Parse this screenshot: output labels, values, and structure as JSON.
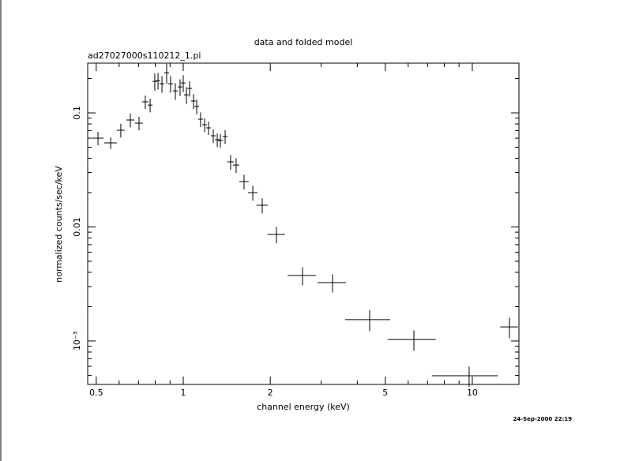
{
  "chart_data": {
    "type": "errorbar",
    "title": "data and folded model",
    "subtitle": "ad27027000s110212_1.pi",
    "xlabel": "channel energy (keV)",
    "ylabel": "normalized counts/sec/keV",
    "timestamp": "24-Sep-2000 22:19",
    "color": "#000000",
    "xscale": "log",
    "yscale": "log",
    "xlim": [
      0.467,
      14.5
    ],
    "ylim": [
      0.000416,
      0.273
    ],
    "xticks": [
      0.5,
      1,
      2,
      5,
      10
    ],
    "yticks": [
      {
        "value": 0.001,
        "label": "10⁻³"
      },
      0.01,
      0.1
    ],
    "xminorticks": [
      0.6,
      0.7,
      0.8,
      0.9,
      3,
      4,
      6,
      7,
      8,
      9
    ],
    "yminorticks": [
      0.0005,
      0.0006,
      0.0007,
      0.0008,
      0.0009,
      0.002,
      0.003,
      0.004,
      0.005,
      0.006,
      0.007,
      0.008,
      0.009,
      0.02,
      0.03,
      0.04,
      0.05,
      0.06,
      0.07,
      0.08,
      0.09,
      0.2
    ],
    "x": [
      0.507,
      0.561,
      0.608,
      0.656,
      0.703,
      0.739,
      0.768,
      0.797,
      0.818,
      0.844,
      0.876,
      0.904,
      0.939,
      0.975,
      1.0,
      1.025,
      1.052,
      1.085,
      1.113,
      1.148,
      1.185,
      1.223,
      1.27,
      1.311,
      1.344,
      1.396,
      1.458,
      1.524,
      1.623,
      1.74,
      1.876,
      2.101,
      2.586,
      3.284,
      4.414,
      6.28,
      9.75,
      13.44
    ],
    "xerr": [
      0.023,
      0.028,
      0.019,
      0.021,
      0.022,
      0.019,
      0.0145,
      0.015,
      0.015,
      0.016,
      0.017,
      0.017,
      0.018,
      0.018,
      0.019,
      0.019,
      0.02,
      0.02,
      0.021,
      0.022,
      0.022,
      0.023,
      0.024,
      0.025,
      0.025,
      0.026,
      0.037,
      0.038,
      0.061,
      0.066,
      0.083,
      0.146,
      0.29,
      0.37,
      0.78,
      1.19,
      2.5,
      0.94
    ],
    "values": [
      0.0601,
      0.0546,
      0.0704,
      0.0866,
      0.0813,
      0.125,
      0.117,
      0.189,
      0.192,
      0.18,
      0.225,
      0.18,
      0.156,
      0.169,
      0.183,
      0.144,
      0.164,
      0.127,
      0.114,
      0.088,
      0.0788,
      0.0739,
      0.063,
      0.0582,
      0.0573,
      0.062,
      0.0372,
      0.0349,
      0.025,
      0.02,
      0.0155,
      0.00859,
      0.00375,
      0.00325,
      0.00154,
      0.00103,
      0.000496,
      0.00133
    ],
    "yerr": [
      0.0082,
      0.0063,
      0.0096,
      0.012,
      0.011,
      0.017,
      0.016,
      0.032,
      0.032,
      0.03,
      0.045,
      0.03,
      0.026,
      0.028,
      0.031,
      0.024,
      0.025,
      0.019,
      0.017,
      0.013,
      0.011,
      0.01,
      0.0086,
      0.0079,
      0.0078,
      0.0085,
      0.0056,
      0.0052,
      0.0037,
      0.003,
      0.0023,
      0.0014,
      0.00068,
      0.00059,
      0.00032,
      0.00021,
      0.0001,
      0.00027
    ]
  }
}
